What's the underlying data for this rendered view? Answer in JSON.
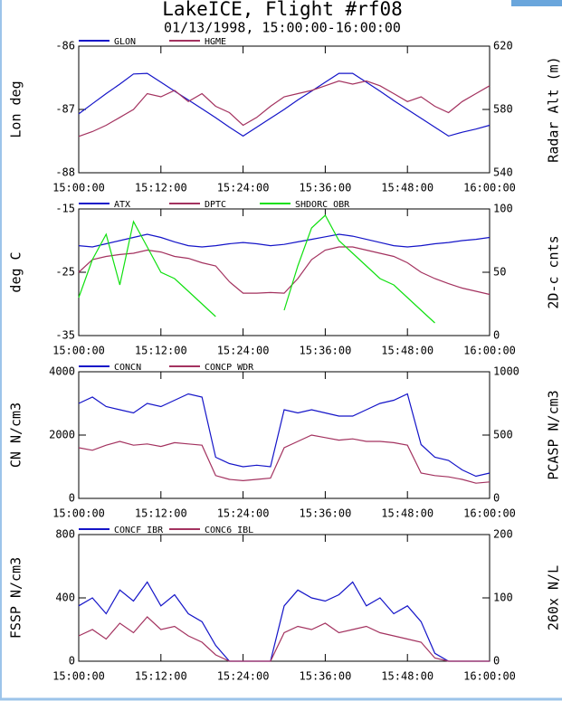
{
  "title": "LakeICE, Flight #rf08",
  "subtitle": "01/13/1998, 15:00:00-16:00:00",
  "chart_data": [
    {
      "type": "line",
      "ylabel": "Lon deg",
      "y2label": "Radar Alt (m)",
      "x": [
        "15:00:00",
        "15:02:00",
        "15:04:00",
        "15:06:00",
        "15:08:00",
        "15:10:00",
        "15:12:00",
        "15:14:00",
        "15:16:00",
        "15:18:00",
        "15:20:00",
        "15:22:00",
        "15:24:00",
        "15:26:00",
        "15:28:00",
        "15:30:00",
        "15:32:00",
        "15:34:00",
        "15:36:00",
        "15:38:00",
        "15:40:00",
        "15:42:00",
        "15:44:00",
        "15:46:00",
        "15:48:00",
        "15:50:00",
        "15:52:00",
        "15:54:00",
        "15:56:00",
        "15:58:00",
        "16:00:00"
      ],
      "xlim": [
        "15:00:00",
        "16:00:00"
      ],
      "xticks": [
        "15:00:00",
        "15:12:00",
        "15:24:00",
        "15:36:00",
        "15:48:00",
        "16:00:00"
      ],
      "ylim": [
        -88,
        -86
      ],
      "yticks": [
        -86,
        -87,
        -88
      ],
      "y2lim": [
        540,
        620
      ],
      "y2ticks": [
        620,
        580,
        540
      ],
      "series": [
        {
          "name": "GLON",
          "color": "#1414c8",
          "values": [
            -87.07,
            -86.91,
            -86.75,
            -86.6,
            -86.44,
            -86.43,
            -86.57,
            -86.71,
            -86.85,
            -86.99,
            -87.13,
            -87.28,
            -87.42,
            -87.28,
            -87.14,
            -87.0,
            -86.85,
            -86.71,
            -86.57,
            -86.43,
            -86.43,
            -86.57,
            -86.71,
            -86.86,
            -87.0,
            -87.14,
            -87.28,
            -87.42,
            -87.36,
            -87.31,
            -87.25
          ]
        },
        {
          "name": "HGME",
          "color": "#a3325f",
          "axis": "y2",
          "values": [
            563,
            566,
            570,
            575,
            580,
            590,
            588,
            592,
            585,
            590,
            582,
            578,
            570,
            575,
            582,
            588,
            590,
            592,
            595,
            598,
            596,
            598,
            595,
            590,
            585,
            588,
            582,
            578,
            585,
            590,
            595
          ]
        }
      ]
    },
    {
      "type": "line",
      "ylabel": "deg C",
      "y2label": "2D-c cnts",
      "x": [
        "15:00:00",
        "15:02:00",
        "15:04:00",
        "15:06:00",
        "15:08:00",
        "15:10:00",
        "15:12:00",
        "15:14:00",
        "15:16:00",
        "15:18:00",
        "15:20:00",
        "15:22:00",
        "15:24:00",
        "15:26:00",
        "15:28:00",
        "15:30:00",
        "15:32:00",
        "15:34:00",
        "15:36:00",
        "15:38:00",
        "15:40:00",
        "15:42:00",
        "15:44:00",
        "15:46:00",
        "15:48:00",
        "15:50:00",
        "15:52:00",
        "15:54:00",
        "15:56:00",
        "15:58:00",
        "16:00:00"
      ],
      "xlim": [
        "15:00:00",
        "16:00:00"
      ],
      "xticks": [
        "15:00:00",
        "15:12:00",
        "15:24:00",
        "15:36:00",
        "15:48:00",
        "16:00:00"
      ],
      "ylim": [
        -35,
        -15
      ],
      "yticks": [
        -15,
        -25,
        -35
      ],
      "y2lim": [
        0,
        100
      ],
      "y2ticks": [
        100,
        50,
        0
      ],
      "series": [
        {
          "name": "ATX",
          "color": "#1414c8",
          "values": [
            -20.8,
            -21.0,
            -20.5,
            -20.0,
            -19.5,
            -19.0,
            -19.5,
            -20.2,
            -20.8,
            -21.0,
            -20.8,
            -20.5,
            -20.3,
            -20.5,
            -20.8,
            -20.6,
            -20.2,
            -19.8,
            -19.4,
            -19.0,
            -19.3,
            -19.8,
            -20.3,
            -20.8,
            -21.0,
            -20.8,
            -20.5,
            -20.3,
            -20.0,
            -19.8,
            -19.5
          ]
        },
        {
          "name": "DPTC",
          "color": "#a3325f",
          "values": [
            -25,
            -23,
            -22.5,
            -22.2,
            -22,
            -21.5,
            -21.8,
            -22.5,
            -22.8,
            -23.5,
            -24,
            -26.5,
            -28.3,
            -28.3,
            -28.2,
            -28.3,
            -26,
            -23,
            -21.5,
            -21,
            -21,
            -21.5,
            -22,
            -22.5,
            -23.5,
            -25,
            -26,
            -26.8,
            -27.5,
            -28,
            -28.5
          ]
        },
        {
          "name": "SHDORC_OBR",
          "color": "#10e010",
          "axis": "y2",
          "values": [
            30,
            60,
            80,
            40,
            90,
            70,
            50,
            45,
            35,
            25,
            15,
            null,
            null,
            null,
            null,
            20,
            55,
            85,
            95,
            75,
            65,
            55,
            45,
            40,
            30,
            20,
            10,
            null,
            null,
            null,
            null
          ]
        }
      ]
    },
    {
      "type": "line",
      "ylabel": "CN N/cm3",
      "y2label": "PCASP N/cm3",
      "x": [
        "15:00:00",
        "15:02:00",
        "15:04:00",
        "15:06:00",
        "15:08:00",
        "15:10:00",
        "15:12:00",
        "15:14:00",
        "15:16:00",
        "15:18:00",
        "15:20:00",
        "15:22:00",
        "15:24:00",
        "15:26:00",
        "15:28:00",
        "15:30:00",
        "15:32:00",
        "15:34:00",
        "15:36:00",
        "15:38:00",
        "15:40:00",
        "15:42:00",
        "15:44:00",
        "15:46:00",
        "15:48:00",
        "15:50:00",
        "15:52:00",
        "15:54:00",
        "15:56:00",
        "15:58:00",
        "16:00:00"
      ],
      "xlim": [
        "15:00:00",
        "16:00:00"
      ],
      "xticks": [
        "15:00:00",
        "15:12:00",
        "15:24:00",
        "15:36:00",
        "15:48:00",
        "16:00:00"
      ],
      "ylim": [
        0,
        4000
      ],
      "yticks": [
        4000,
        2000,
        0
      ],
      "y2lim": [
        0,
        1000
      ],
      "y2ticks": [
        1000,
        500,
        0
      ],
      "series": [
        {
          "name": "CONCN",
          "color": "#1414c8",
          "values": [
            3000,
            3200,
            2900,
            2800,
            2700,
            3000,
            2900,
            3100,
            3300,
            3200,
            1300,
            1100,
            1000,
            1050,
            1000,
            2800,
            2700,
            2800,
            2700,
            2600,
            2600,
            2800,
            3000,
            3100,
            3300,
            1700,
            1300,
            1200,
            900,
            700,
            800
          ]
        },
        {
          "name": "CONCP_WDR",
          "color": "#a3325f",
          "axis": "y2",
          "values": [
            400,
            380,
            420,
            450,
            420,
            430,
            410,
            440,
            430,
            420,
            180,
            150,
            140,
            150,
            160,
            400,
            450,
            500,
            480,
            460,
            470,
            450,
            450,
            440,
            420,
            200,
            180,
            170,
            150,
            120,
            130
          ]
        }
      ]
    },
    {
      "type": "line",
      "ylabel": "FSSP N/cm3",
      "y2label": "260x N/L",
      "x": [
        "15:00:00",
        "15:02:00",
        "15:04:00",
        "15:06:00",
        "15:08:00",
        "15:10:00",
        "15:12:00",
        "15:14:00",
        "15:16:00",
        "15:18:00",
        "15:20:00",
        "15:22:00",
        "15:24:00",
        "15:26:00",
        "15:28:00",
        "15:30:00",
        "15:32:00",
        "15:34:00",
        "15:36:00",
        "15:38:00",
        "15:40:00",
        "15:42:00",
        "15:44:00",
        "15:46:00",
        "15:48:00",
        "15:50:00",
        "15:52:00",
        "15:54:00",
        "15:56:00",
        "15:58:00",
        "16:00:00"
      ],
      "xlim": [
        "15:00:00",
        "16:00:00"
      ],
      "xticks": [
        "15:00:00",
        "15:12:00",
        "15:24:00",
        "15:36:00",
        "15:48:00",
        "16:00:00"
      ],
      "ylim": [
        0,
        800
      ],
      "yticks": [
        800,
        400,
        0
      ],
      "y2lim": [
        0,
        200
      ],
      "y2ticks": [
        200,
        100,
        0
      ],
      "series": [
        {
          "name": "CONCF_IBR",
          "color": "#1414c8",
          "values": [
            350,
            400,
            300,
            450,
            380,
            500,
            350,
            420,
            300,
            250,
            100,
            0,
            0,
            0,
            0,
            350,
            450,
            400,
            380,
            420,
            500,
            350,
            400,
            300,
            350,
            250,
            50,
            0,
            0,
            0,
            0
          ]
        },
        {
          "name": "CONC6_IBL",
          "color": "#a3325f",
          "axis": "y2",
          "values": [
            40,
            50,
            35,
            60,
            45,
            70,
            50,
            55,
            40,
            30,
            10,
            0,
            0,
            0,
            0,
            45,
            55,
            50,
            60,
            45,
            50,
            55,
            45,
            40,
            35,
            30,
            5,
            0,
            0,
            0,
            0
          ]
        }
      ]
    }
  ]
}
